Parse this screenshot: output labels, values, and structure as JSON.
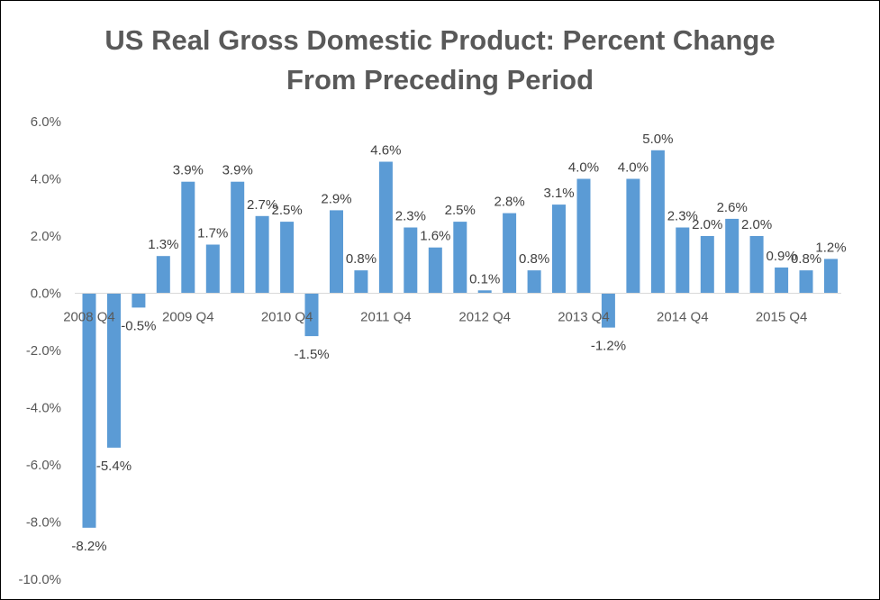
{
  "chart_data": {
    "type": "bar",
    "title_lines": [
      "US Real Gross Domestic Product: Percent Change",
      "From Preceding Period"
    ],
    "xlabel": "",
    "ylabel": "",
    "ylim": [
      -10,
      6
    ],
    "y_ticks": [
      "6.0%",
      "4.0%",
      "2.0%",
      "0.0%",
      "-2.0%",
      "-4.0%",
      "-6.0%",
      "-8.0%",
      "-10.0%"
    ],
    "grid": false,
    "legend": "none",
    "bar_color": "#5B9BD5",
    "values": [
      -8.2,
      -5.4,
      -0.5,
      1.3,
      3.9,
      1.7,
      3.9,
      2.7,
      2.5,
      -1.5,
      2.9,
      0.8,
      4.6,
      2.3,
      1.6,
      2.5,
      0.1,
      2.8,
      0.8,
      3.1,
      4.0,
      -1.2,
      4.0,
      5.0,
      2.3,
      2.0,
      2.6,
      2.0,
      0.9,
      0.8,
      1.2
    ],
    "data_labels": [
      "-8.2%",
      "-5.4%",
      "-0.5%",
      "1.3%",
      "3.9%",
      "1.7%",
      "3.9%",
      "2.7%",
      "2.5%",
      "-1.5%",
      "2.9%",
      "0.8%",
      "4.6%",
      "2.3%",
      "1.6%",
      "2.5%",
      "0.1%",
      "2.8%",
      "0.8%",
      "3.1%",
      "4.0%",
      "-1.2%",
      "4.0%",
      "5.0%",
      "2.3%",
      "2.0%",
      "2.6%",
      "2.0%",
      "0.9%",
      "0.8%",
      "1.2%"
    ],
    "show_data_label": [
      true,
      true,
      true,
      true,
      true,
      true,
      true,
      true,
      true,
      true,
      true,
      true,
      true,
      true,
      true,
      true,
      true,
      true,
      true,
      true,
      true,
      true,
      true,
      true,
      true,
      true,
      true,
      true,
      true,
      true,
      true
    ],
    "category_labels": [
      {
        "index": 0,
        "label": "2008 Q4"
      },
      {
        "index": 4,
        "label": "2009 Q4"
      },
      {
        "index": 8,
        "label": "2010 Q4"
      },
      {
        "index": 12,
        "label": "2011 Q4"
      },
      {
        "index": 16,
        "label": "2012 Q4"
      },
      {
        "index": 20,
        "label": "2013 Q4"
      },
      {
        "index": 24,
        "label": "2014 Q4"
      },
      {
        "index": 28,
        "label": "2015 Q4"
      }
    ]
  }
}
